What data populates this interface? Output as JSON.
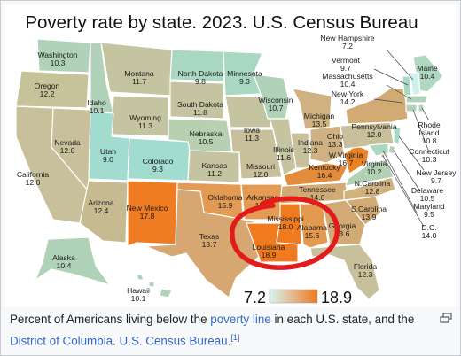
{
  "map": {
    "title": "Poverty rate by state. 2023. U.S. Census Bureau",
    "legend": {
      "min": "7.2",
      "max": "18.9",
      "min_color": "#d6f5f2",
      "max_color": "#f07820"
    },
    "states": [
      {
        "name": "Washington",
        "value": "10.3"
      },
      {
        "name": "Oregon",
        "value": "12.2"
      },
      {
        "name": "California",
        "value": "12.0"
      },
      {
        "name": "Nevada",
        "value": "12.0"
      },
      {
        "name": "Idaho",
        "value": "10.1"
      },
      {
        "name": "Montana",
        "value": "11.7"
      },
      {
        "name": "Wyoming",
        "value": "11.3"
      },
      {
        "name": "Utah",
        "value": "9.0"
      },
      {
        "name": "Arizona",
        "value": "12.4"
      },
      {
        "name": "Colorado",
        "value": "9.3"
      },
      {
        "name": "New Mexico",
        "value": "17.8"
      },
      {
        "name": "North Dakota",
        "value": "9.8"
      },
      {
        "name": "South Dakota",
        "value": "11.8"
      },
      {
        "name": "Nebraska",
        "value": "10.5"
      },
      {
        "name": "Kansas",
        "value": "11.2"
      },
      {
        "name": "Oklahoma",
        "value": "15.9"
      },
      {
        "name": "Texas",
        "value": "13.7"
      },
      {
        "name": "Minnesota",
        "value": "9.3"
      },
      {
        "name": "Iowa",
        "value": "11.3"
      },
      {
        "name": "Missouri",
        "value": "12.0"
      },
      {
        "name": "Arkansas",
        "value": "15.7"
      },
      {
        "name": "Louisiana",
        "value": "18.9"
      },
      {
        "name": "Wisconsin",
        "value": "10.7"
      },
      {
        "name": "Illinois",
        "value": "11.6"
      },
      {
        "name": "Michigan",
        "value": "13.5"
      },
      {
        "name": "Indiana",
        "value": "12.3"
      },
      {
        "name": "Ohio",
        "value": "13.3"
      },
      {
        "name": "Kentucky",
        "value": "16.4"
      },
      {
        "name": "Tennessee",
        "value": "14.0"
      },
      {
        "name": "Mississippi",
        "value": "18.0"
      },
      {
        "name": "Alabama",
        "value": "15.6"
      },
      {
        "name": "Georgia",
        "value": "13.6"
      },
      {
        "name": "Florida",
        "value": "12.3"
      },
      {
        "name": "S.Carolina",
        "value": "13.9"
      },
      {
        "name": "N.Carolina",
        "value": "12.8"
      },
      {
        "name": "Virginia",
        "value": "10.2"
      },
      {
        "name": "W.Virginia",
        "value": "16.7"
      },
      {
        "name": "Pennsylvania",
        "value": "12.0"
      },
      {
        "name": "New York",
        "value": "14.2"
      },
      {
        "name": "Alaska",
        "value": "10.4"
      },
      {
        "name": "Hawaii",
        "value": "10.1"
      },
      {
        "name": "Maine",
        "value": "10.4"
      },
      {
        "name": "New Hampshire",
        "value": "7.2"
      },
      {
        "name": "Vermont",
        "value": "9.7"
      },
      {
        "name": "Massachusetts",
        "value": "10.4"
      },
      {
        "name": "Rhode Island",
        "value": "10.8"
      },
      {
        "name": "Connecticut",
        "value": "10.3"
      },
      {
        "name": "New Jersey",
        "value": "9.7"
      },
      {
        "name": "Delaware",
        "value": "10.5"
      },
      {
        "name": "Maryland",
        "value": "9.5"
      },
      {
        "name": "D.C.",
        "value": "14.0"
      }
    ]
  },
  "caption": {
    "text_1": "Percent of Americans living below the ",
    "link_1": "poverty line",
    "text_2": " in each U.S. state, and the ",
    "link_2": "District of Columbia",
    "text_3": ". ",
    "link_3": "U.S. Census Bureau",
    "text_4": ".",
    "ref": "[1]"
  },
  "icons": {
    "expand": "expand-icon"
  }
}
